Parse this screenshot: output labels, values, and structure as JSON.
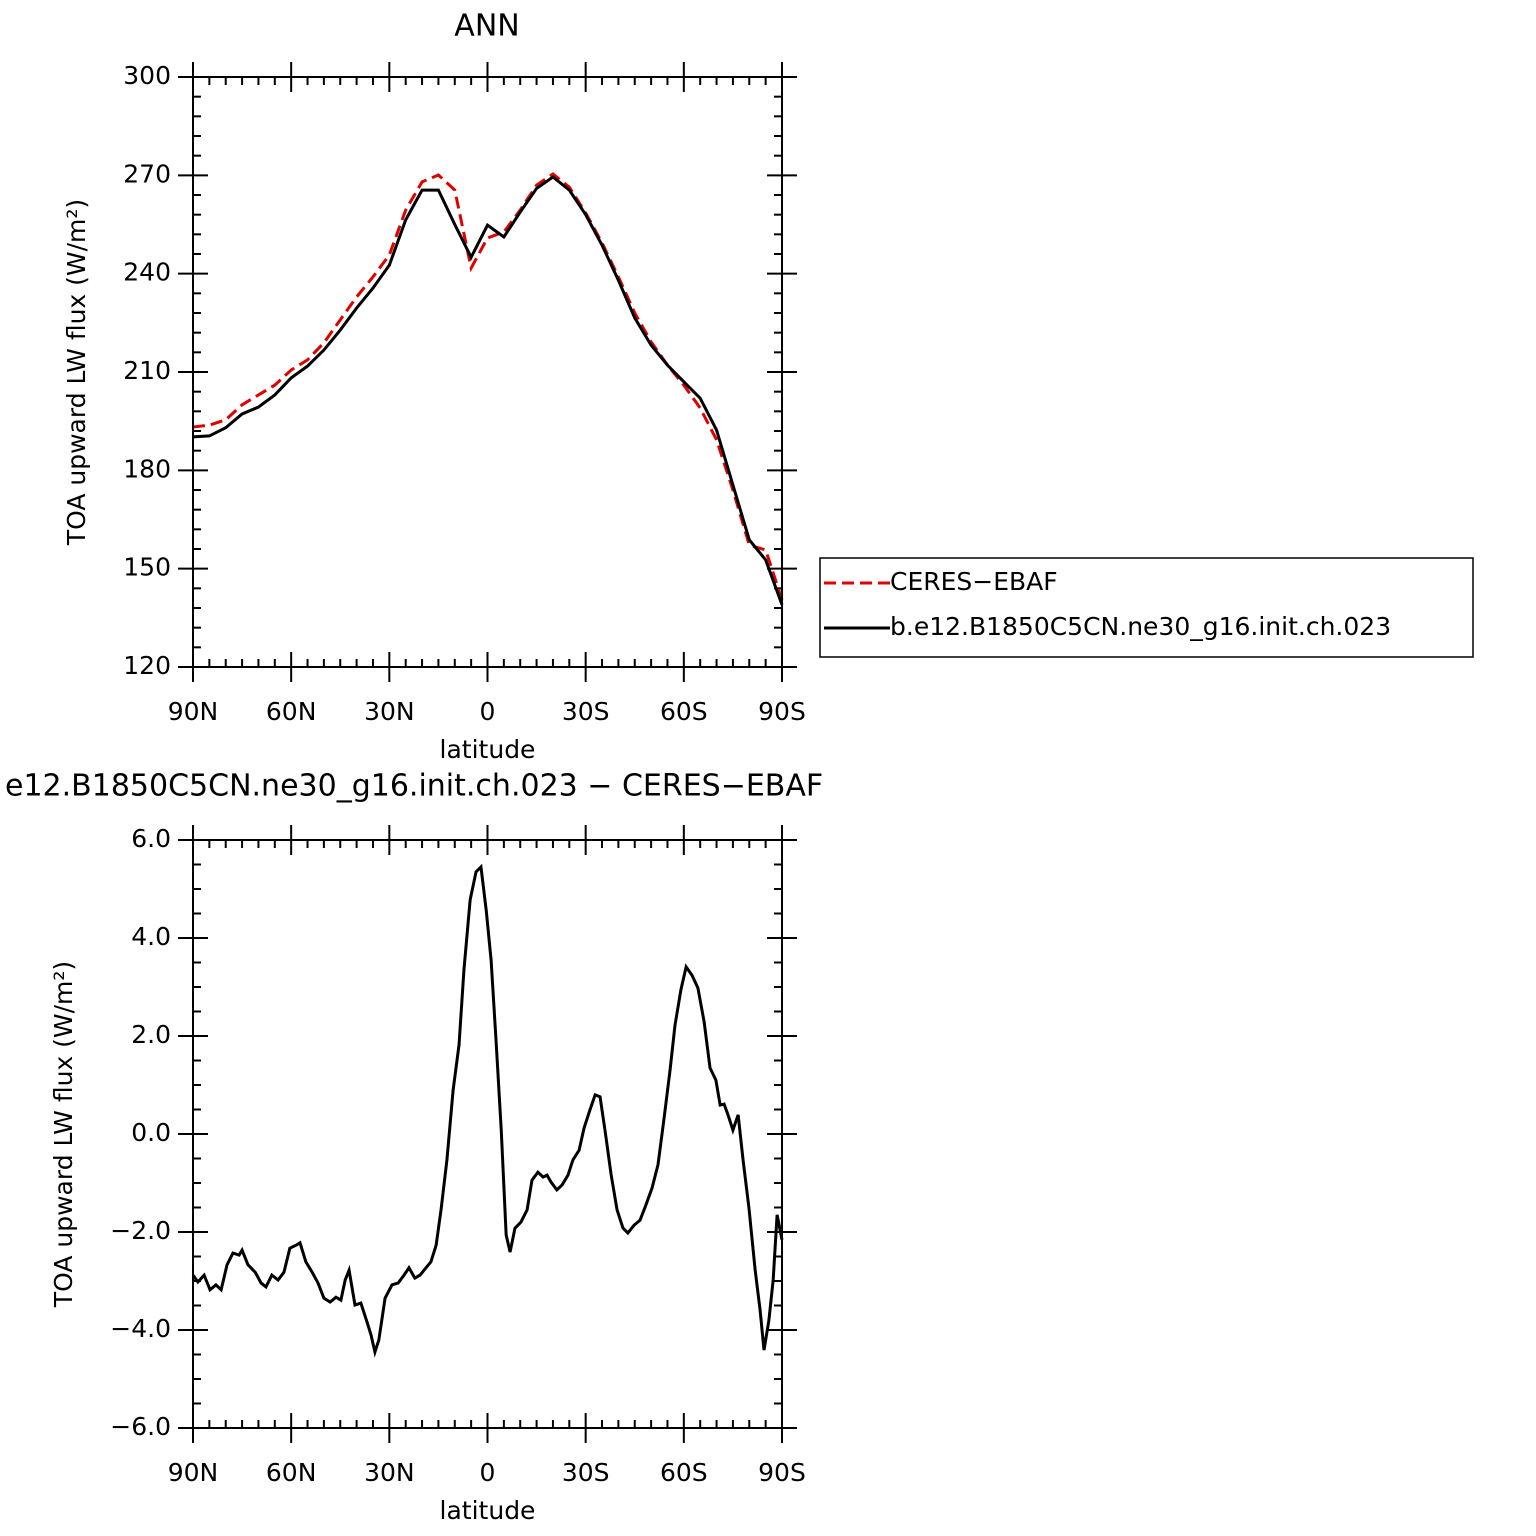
{
  "chart_data": [
    {
      "type": "line",
      "title": "ANN",
      "xlabel": "latitude",
      "ylabel": "TOA upward LW flux (W/m²)",
      "x": [
        90,
        85,
        80,
        75,
        70,
        65,
        60,
        55,
        50,
        45,
        40,
        35,
        30,
        25,
        20,
        15,
        10,
        5,
        0,
        -5,
        -10,
        -15,
        -20,
        -25,
        -30,
        -35,
        -40,
        -45,
        -50,
        -55,
        -60,
        -65,
        -70,
        -75,
        -80,
        -85,
        -90
      ],
      "series": [
        {
          "name": "CERES−EBAF",
          "color": "#e00000",
          "line_style": "dashed",
          "values": [
            193.2,
            193.8,
            195.4,
            200,
            203,
            206,
            210.6,
            213.7,
            218.9,
            225.9,
            232.9,
            239,
            245.7,
            259.4,
            268,
            270.1,
            265.5,
            241.7,
            250.9,
            252.7,
            259.4,
            267,
            270.4,
            266.4,
            258.5,
            249.4,
            239,
            228,
            219.2,
            212.1,
            206,
            199,
            189.3,
            174,
            157.2,
            155.7,
            140.5
          ]
        },
        {
          "name": "b.e12.B1850C5CN.ne30_g16.init.ch.023",
          "color": "#000000",
          "line_style": "solid",
          "values": [
            190.2,
            190.5,
            193,
            197.2,
            199.3,
            203,
            208.2,
            211.8,
            216.7,
            222.8,
            229.5,
            235.6,
            242.6,
            256.4,
            265.5,
            265.5,
            255,
            245,
            254.8,
            251.2,
            258.8,
            266,
            269.5,
            265.5,
            258,
            248.7,
            238,
            226.5,
            218.2,
            212.1,
            207,
            202,
            192.3,
            175.5,
            158.8,
            152.7,
            139
          ]
        }
      ],
      "xlim": [
        90,
        -90
      ],
      "xticks": [
        {
          "value": 90,
          "label": "90N"
        },
        {
          "value": 60,
          "label": "60N"
        },
        {
          "value": 30,
          "label": "30N"
        },
        0,
        {
          "value": -30,
          "label": "30S"
        },
        {
          "value": -60,
          "label": "60S"
        },
        {
          "value": -90,
          "label": "90S"
        }
      ],
      "ylim": [
        120,
        300
      ],
      "yticks": [
        120,
        150,
        180,
        210,
        240,
        270,
        300
      ],
      "legend": "right"
    },
    {
      "type": "line",
      "title": "e12.B1850C5CN.ne30_g16.init.ch.023 − CERES−EBAF",
      "xlabel": "latitude",
      "ylabel": "TOA upward LW flux (W/m²)",
      "x": [
        90,
        88.5,
        86.6,
        84.8,
        83,
        81.4,
        79.6,
        77.8,
        75.9,
        75,
        73.2,
        71,
        69.2,
        67.7,
        65.9,
        64,
        62.2,
        60.4,
        58.5,
        57.3,
        55.5,
        53.6,
        51.8,
        50,
        48.1,
        46.3,
        44.8,
        43.5,
        42.3,
        40.5,
        38.7,
        36.8,
        35.6,
        34.4,
        33.2,
        31.3,
        29.2,
        27.3,
        25.5,
        24,
        22.2,
        20.6,
        18.8,
        17.3,
        15.7,
        14.2,
        12.4,
        10.5,
        8.7,
        7.2,
        5.3,
        3.5,
        2,
        0.4,
        -1.1,
        -2.6,
        -4.2,
        -5.7,
        -6.9,
        -8.4,
        -10.2,
        -12.1,
        -13.6,
        -15.4,
        -17,
        -18.2,
        -19.4,
        -21.2,
        -22.8,
        -24.6,
        -26.1,
        -28,
        -29.5,
        -31.3,
        -32.9,
        -34.4,
        -35.9,
        -37.8,
        -39.6,
        -41.4,
        -42.9,
        -44.8,
        -46.6,
        -48.4,
        -50.3,
        -52.1,
        -53.9,
        -55.8,
        -57.3,
        -59.1,
        -60.7,
        -62.5,
        -64.3,
        -66.2,
        -68,
        -69.8,
        -71.1,
        -72.3,
        -73.5,
        -75,
        -76.6,
        -78.1,
        -79.9,
        -81.8,
        -83.3,
        -84.5,
        -86,
        -87.3,
        -88.5,
        -90
      ],
      "series": [
        {
          "color": "#000000",
          "line_style": "solid",
          "values": [
            -2.88,
            -3.02,
            -2.88,
            -3.18,
            -3.08,
            -3.18,
            -2.67,
            -2.43,
            -2.47,
            -2.37,
            -2.67,
            -2.82,
            -3.04,
            -3.12,
            -2.88,
            -2.98,
            -2.82,
            -2.33,
            -2.27,
            -2.22,
            -2.61,
            -2.82,
            -3.04,
            -3.35,
            -3.43,
            -3.33,
            -3.39,
            -2.98,
            -2.78,
            -3.49,
            -3.45,
            -3.84,
            -4.1,
            -4.45,
            -4.2,
            -3.35,
            -3.08,
            -3.04,
            -2.88,
            -2.73,
            -2.94,
            -2.88,
            -2.73,
            -2.61,
            -2.27,
            -1.55,
            -0.53,
            0.9,
            1.82,
            3.35,
            4.78,
            5.35,
            5.45,
            4.57,
            3.55,
            1.92,
            0.08,
            -2.06,
            -2.41,
            -1.92,
            -1.8,
            -1.55,
            -0.94,
            -0.78,
            -0.88,
            -0.84,
            -0.98,
            -1.14,
            -1.04,
            -0.84,
            -0.53,
            -0.33,
            0.12,
            0.49,
            0.8,
            0.76,
            0.08,
            -0.84,
            -1.55,
            -1.92,
            -2.02,
            -1.86,
            -1.76,
            -1.45,
            -1.1,
            -0.63,
            0.29,
            1.31,
            2.22,
            2.94,
            3.41,
            3.24,
            2.98,
            2.29,
            1.35,
            1.1,
            0.59,
            0.61,
            0.39,
            0.08,
            0.39,
            -0.53,
            -1.51,
            -2.78,
            -3.59,
            -4.41,
            -3.8,
            -2.98,
            -1.65,
            -2.16
          ]
        }
      ],
      "xlim": [
        90,
        -90
      ],
      "xticks": [
        {
          "value": 90,
          "label": "90N"
        },
        {
          "value": 60,
          "label": "60N"
        },
        {
          "value": 30,
          "label": "30N"
        },
        0,
        {
          "value": -30,
          "label": "30S"
        },
        {
          "value": -60,
          "label": "60S"
        },
        {
          "value": -90,
          "label": "90S"
        }
      ],
      "ylim": [
        -6,
        6
      ],
      "yticks": [
        {
          "value": -6,
          "label": "−6.0"
        },
        {
          "value": -4,
          "label": "−4.0"
        },
        {
          "value": -2,
          "label": "−2.0"
        },
        {
          "value": 0,
          "label": "0.0"
        },
        {
          "value": 2,
          "label": "2.0"
        },
        {
          "value": 4,
          "label": "4.0"
        },
        {
          "value": 6,
          "label": "6.0"
        }
      ]
    }
  ]
}
